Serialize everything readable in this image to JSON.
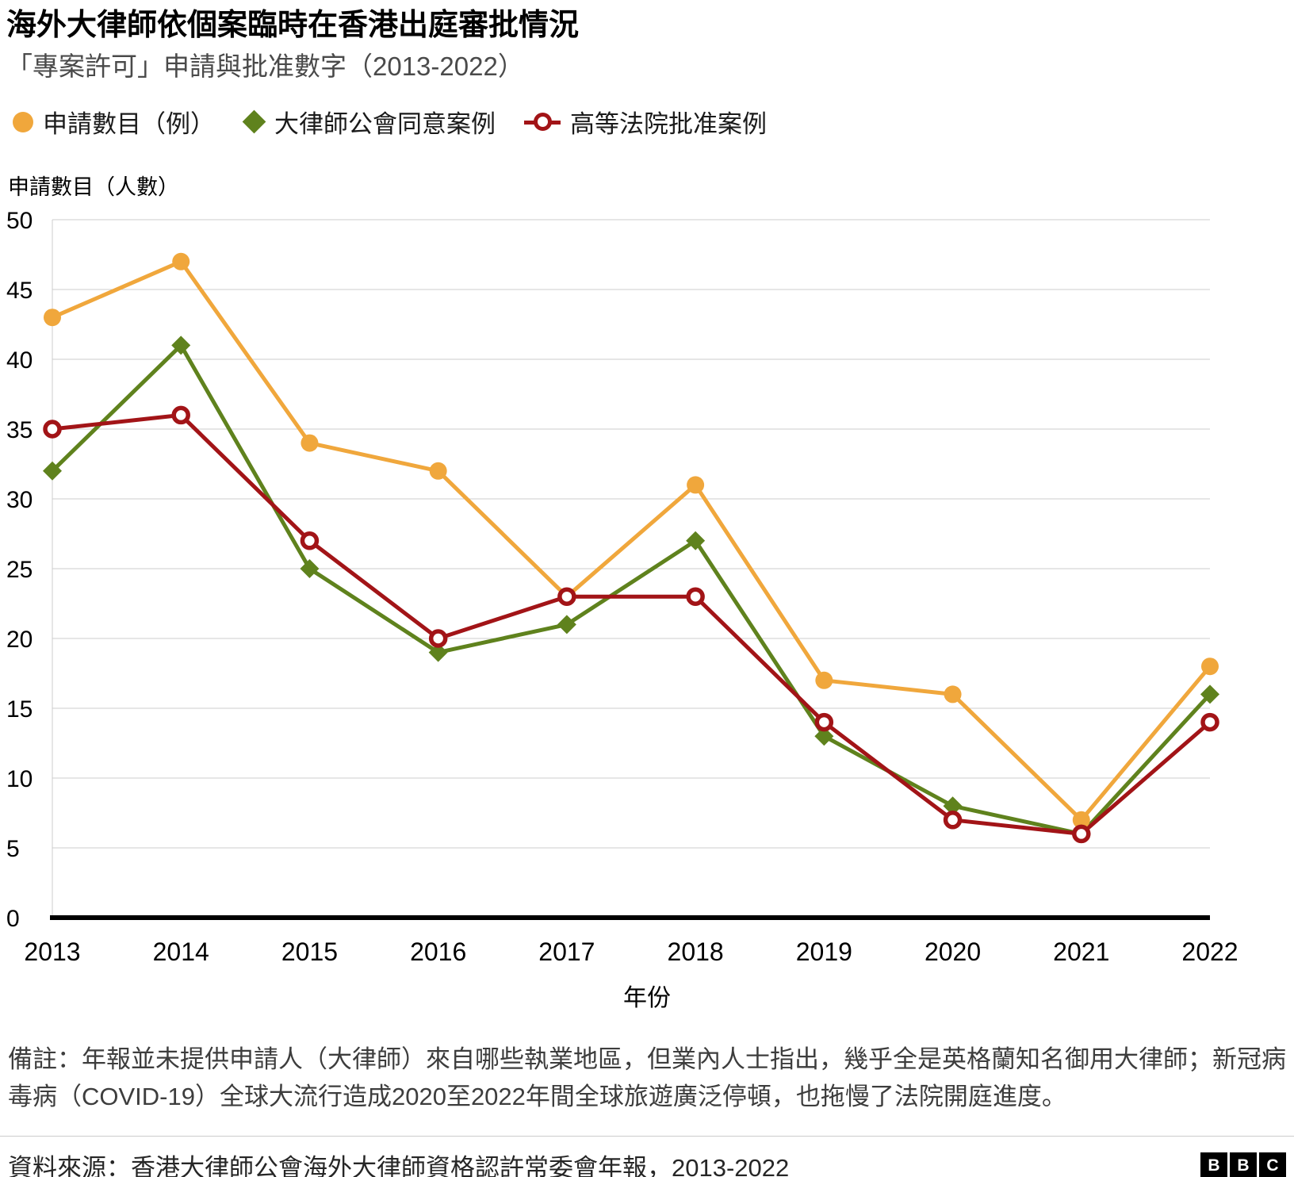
{
  "title": "海外大律師依個案臨時在香港出庭審批情況",
  "subtitle": "「專案許可」申請與批准數字（2013-2022）",
  "y_axis_title": "申請數目（人數）",
  "x_axis_title": "年份",
  "footnote": "備註：年報並未提供申請人（大律師）來自哪些執業地區，但業內人士指出，幾乎全是英格蘭知名御用大律師；新冠病毒病（COVID-19）全球大流行造成2020至2022年間全球旅遊廣泛停頓，也拖慢了法院開庭進度。",
  "source": "資料來源：香港大律師公會海外大律師資格認許常委會年報，2013-2022",
  "bbc_logo": [
    "B",
    "B",
    "C"
  ],
  "colors": {
    "grid": "#cccccc",
    "axis": "#000000",
    "applications": "#F0A73C",
    "bar_agreed": "#5F821D",
    "court_approved": "#A21417"
  },
  "chart_data": {
    "type": "line",
    "title": "海外大律師依個案臨時在香港出庭審批情況",
    "subtitle": "「專案許可」申請與批准數字（2013-2022）",
    "xlabel": "年份",
    "ylabel": "申請數目（人數）",
    "x": [
      2013,
      2014,
      2015,
      2016,
      2017,
      2018,
      2019,
      2020,
      2021,
      2022
    ],
    "series": [
      {
        "name": "申請數目（例）",
        "marker": "circle",
        "color": "#F0A73C",
        "values": [
          43,
          47,
          34,
          32,
          23,
          31,
          17,
          16,
          7,
          18
        ]
      },
      {
        "name": "大律師公會同意案例",
        "marker": "diamond",
        "color": "#5F821D",
        "values": [
          32,
          41,
          25,
          19,
          21,
          27,
          13,
          8,
          6,
          16
        ]
      },
      {
        "name": "高等法院批准案例",
        "marker": "open-circle",
        "color": "#A21417",
        "values": [
          35,
          36,
          27,
          20,
          23,
          23,
          14,
          7,
          6,
          14
        ]
      }
    ],
    "ylim": [
      0,
      50
    ],
    "ytick_step": 5,
    "grid": true,
    "legend_position": "top"
  }
}
